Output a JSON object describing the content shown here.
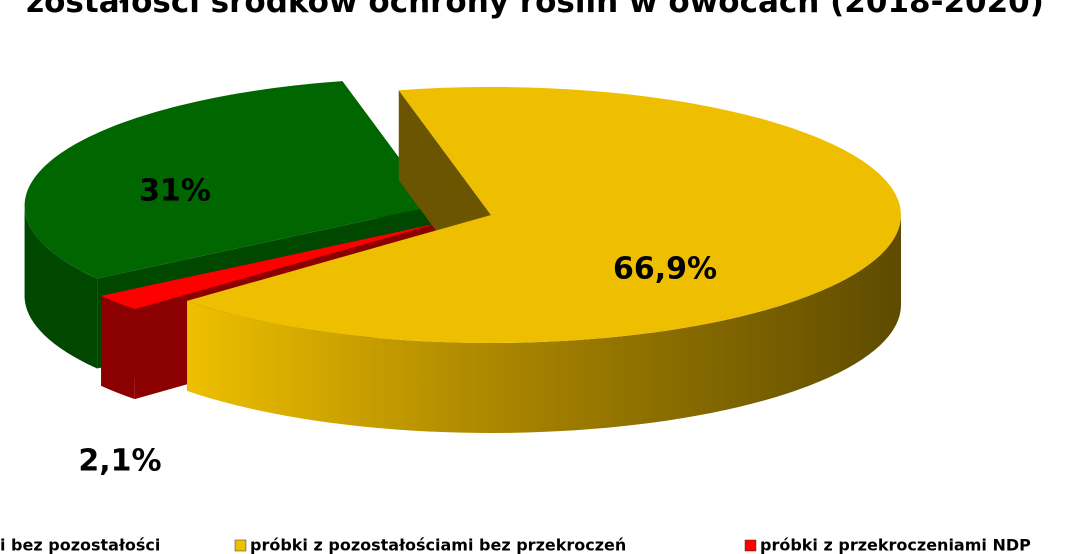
{
  "chart_data": {
    "type": "pie",
    "title": "zostałości środków ochrony roślin w owocach (2018-2020)",
    "categories": [
      "i bez pozostałości",
      "próbki z pozostałościami bez przekroczeń",
      "próbki z przekroczeniami NDP"
    ],
    "values": [
      31,
      66.9,
      2.1
    ],
    "value_labels": [
      "31%",
      "66,9%",
      "2,1%"
    ],
    "colors": [
      "#006600",
      "#eebf00",
      "#ff0000"
    ],
    "legend": "bottom"
  }
}
